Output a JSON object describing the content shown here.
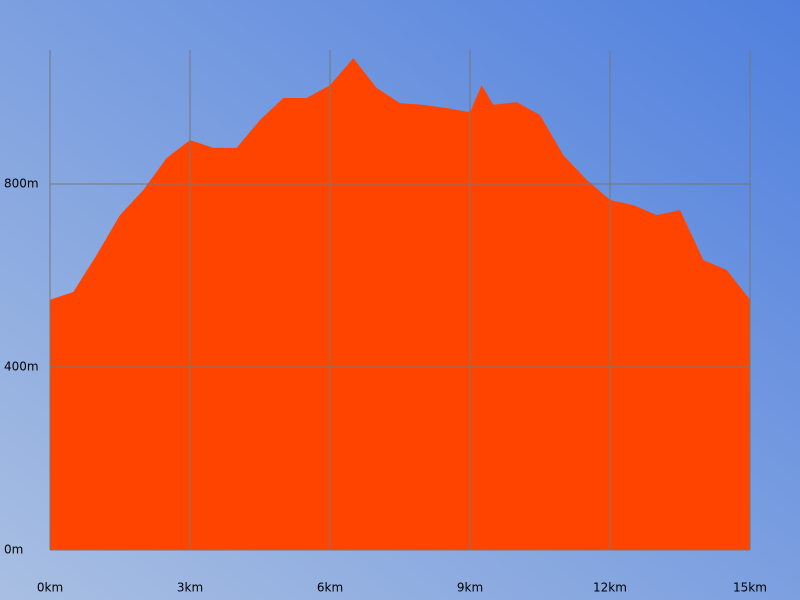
{
  "chart_data": {
    "type": "area",
    "x": [
      0,
      0.5,
      1,
      1.5,
      2,
      2.5,
      3,
      3.5,
      4,
      4.5,
      5,
      5.5,
      6,
      6.5,
      7,
      7.5,
      8,
      8.5,
      9,
      9.25,
      9.5,
      10,
      10.5,
      11,
      11.5,
      12,
      12.5,
      13,
      13.5,
      14,
      14.5,
      15
    ],
    "values": [
      547,
      564,
      645,
      732,
      787,
      857,
      896,
      879,
      879,
      940,
      988,
      988,
      1016,
      1075,
      1010,
      977,
      973,
      966,
      957,
      1016,
      973,
      979,
      951,
      863,
      809,
      765,
      754,
      732,
      743,
      634,
      612,
      547
    ],
    "color": "#ff4400",
    "xlim": [
      0,
      15
    ],
    "ylim": [
      0,
      1093
    ],
    "xticks": [
      {
        "value": 0,
        "label": "0km"
      },
      {
        "value": 3,
        "label": "3km"
      },
      {
        "value": 6,
        "label": "6km"
      },
      {
        "value": 9,
        "label": "9km"
      },
      {
        "value": 12,
        "label": "12km"
      },
      {
        "value": 15,
        "label": "15km"
      }
    ],
    "yticks": [
      {
        "value": 0,
        "label": "0m"
      },
      {
        "value": 400,
        "label": "400m"
      },
      {
        "value": 800,
        "label": "800m"
      }
    ],
    "grid": true
  }
}
